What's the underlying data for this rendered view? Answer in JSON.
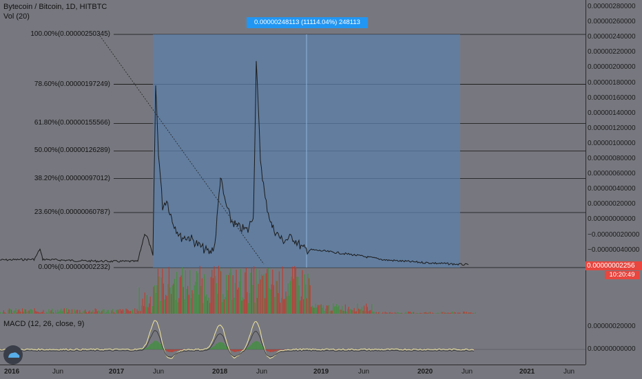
{
  "header": {
    "title": "Bytecoin / Bitcoin, 1D, HITBTC",
    "volume_label": "Vol (20)"
  },
  "indicator": {
    "macd_label": "MACD (12, 26, close, 9)"
  },
  "measure_tooltip": "0.00000248113 (11114.04%) 248113",
  "fib_levels": [
    {
      "label": "100.00%(0.00000250345)",
      "value": 2.50345e-06
    },
    {
      "label": "78.60%(0.00000197249)",
      "value": 1.97249e-06
    },
    {
      "label": "61.80%(0.00000155566)",
      "value": 1.55566e-06
    },
    {
      "label": "50.00%(0.00000126289)",
      "value": 1.26289e-06
    },
    {
      "label": "38.20%(0.00000097012)",
      "value": 9.7012e-07
    },
    {
      "label": "23.60%(0.00000060787)",
      "value": 6.0787e-07
    },
    {
      "label": "0.00%(0.00000002232)",
      "value": 2.232e-08
    }
  ],
  "price_axis": {
    "ticks": [
      "0.00000280000",
      "0.00000260000",
      "0.00000240000",
      "0.00000220000",
      "0.00000200000",
      "0.00000180000",
      "0.00000160000",
      "0.00000140000",
      "0.00000120000",
      "0.00000100000",
      "0.00000080000",
      "0.00000060000",
      "0.00000040000",
      "0.00000020000",
      "0.00000000000",
      "−0.00000020000",
      "−0.00000040000"
    ],
    "current_price": "0.00000002256",
    "countdown": "10:20:49"
  },
  "macd_axis": {
    "ticks": [
      "0.00000020000",
      "0.00000000000"
    ]
  },
  "time_axis": {
    "ticks": [
      {
        "label": "2016",
        "major": true
      },
      {
        "label": "Jun",
        "major": false
      },
      {
        "label": "2017",
        "major": true
      },
      {
        "label": "Jun",
        "major": false
      },
      {
        "label": "2018",
        "major": true
      },
      {
        "label": "Jun",
        "major": false
      },
      {
        "label": "2019",
        "major": true
      },
      {
        "label": "Jun",
        "major": false
      },
      {
        "label": "2020",
        "major": true
      },
      {
        "label": "Jun",
        "major": false
      },
      {
        "label": "2021",
        "major": true
      },
      {
        "label": "Jun",
        "major": false
      }
    ]
  },
  "colors": {
    "background": "#77787f",
    "measure_box": "#5b7fa8",
    "measure_tip": "#2196f3",
    "price_badge": "#e8463f",
    "volume_up": "#3f8f3c",
    "volume_down": "#c0392b",
    "candles": "#1a1a1a"
  },
  "chart_data": {
    "type": "line",
    "title": "Bytecoin / Bitcoin, 1D, HITBTC",
    "x": [
      "2016-01",
      "2016-06",
      "2016-12",
      "2017-04",
      "2017-05",
      "2017-06",
      "2017-08",
      "2017-11",
      "2017-12",
      "2018-01",
      "2018-03",
      "2018-04",
      "2018-05",
      "2018-06",
      "2018-09",
      "2018-12",
      "2019-03",
      "2019-06",
      "2019-12",
      "2020-06"
    ],
    "values": [
      1e-08,
      1e-08,
      2e-08,
      4e-08,
      1.9e-06,
      8e-07,
      3e-07,
      2e-07,
      9e-07,
      5e-07,
      3e-07,
      3e-07,
      2.1e-06,
      9e-07,
      4e-07,
      2e-07,
      1.5e-07,
      1e-07,
      4e-08,
      2e-08
    ],
    "ylim": [
      -4e-07,
      2.9e-06
    ],
    "grid": true
  }
}
